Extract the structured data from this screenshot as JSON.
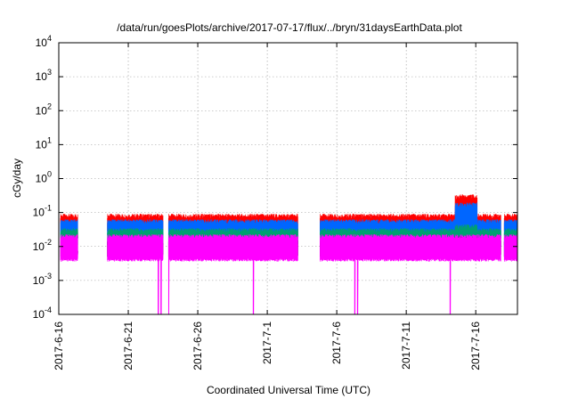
{
  "chart_data": {
    "type": "line",
    "title": "/data/run/goesPlots/archive/2017-07-17/flux/../bryn/31daysEarthData.plot",
    "xlabel": "Coordinated Universal Time (UTC)",
    "ylabel": "cGy/day",
    "y_scale": "log",
    "ylim": [
      0.0001,
      10000
    ],
    "y_ticks": [
      {
        "value": 0.0001,
        "base": "10",
        "exp": "-4"
      },
      {
        "value": 0.001,
        "base": "10",
        "exp": "-3"
      },
      {
        "value": 0.01,
        "base": "10",
        "exp": "-2"
      },
      {
        "value": 0.1,
        "base": "10",
        "exp": "-1"
      },
      {
        "value": 1,
        "base": "10",
        "exp": "0"
      },
      {
        "value": 10,
        "base": "10",
        "exp": "1"
      },
      {
        "value": 100,
        "base": "10",
        "exp": "2"
      },
      {
        "value": 1000,
        "base": "10",
        "exp": "3"
      },
      {
        "value": 10000,
        "base": "10",
        "exp": "4"
      }
    ],
    "xlim": [
      "2017-06-16",
      "2017-07-19"
    ],
    "x_ticks": [
      "2017-6-16",
      "2017-6-21",
      "2017-6-26",
      "2017-7-1",
      "2017-7-6",
      "2017-7-11",
      "2017-7-16"
    ],
    "grid": true,
    "legend": "none",
    "data_segments": [
      [
        "2017-06-16.12",
        "2017-06-17.37"
      ],
      [
        "2017-06-19.5",
        "2017-06-23.5"
      ],
      [
        "2017-06-23.9",
        "2017-07-03.2"
      ],
      [
        "2017-07-04.8",
        "2017-07-17.8"
      ],
      [
        "2017-07-18.05",
        "2017-07-19.0"
      ]
    ],
    "dropouts": [
      "2017-06-23.15",
      "2017-06-23.35",
      "2017-06-23.9",
      "2017-06-30.0",
      "2017-07-07.3",
      "2017-07-07.5",
      "2017-07-14.15"
    ],
    "series": [
      {
        "color": "#ff0000",
        "level": 0.05,
        "high": 0.08,
        "peak": 0.35
      },
      {
        "color": "#0066ff",
        "level": 0.035,
        "high": 0.055,
        "peak": 0.2
      },
      {
        "color": "#00a070",
        "level": 0.018,
        "high": 0.03,
        "peak": 0.045
      },
      {
        "color": "#000000",
        "level": 0.009,
        "high": 0.015,
        "peak": 0.02
      },
      {
        "color": "#ff00ff",
        "level": 0.008,
        "high": 0.02,
        "low": 0.004
      }
    ]
  }
}
